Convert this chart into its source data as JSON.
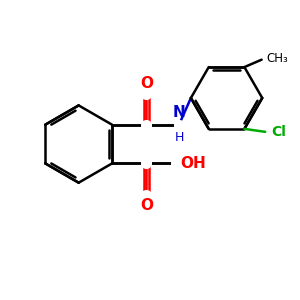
{
  "background": "#ffffff",
  "bond_color": "#000000",
  "oxygen_color": "#ff0000",
  "nitrogen_color": "#0000cc",
  "chlorine_color": "#00aa00",
  "bond_width": 1.8,
  "figsize": [
    3.0,
    3.0
  ],
  "dpi": 100,
  "xlim": [
    0,
    10
  ],
  "ylim": [
    0,
    10
  ]
}
